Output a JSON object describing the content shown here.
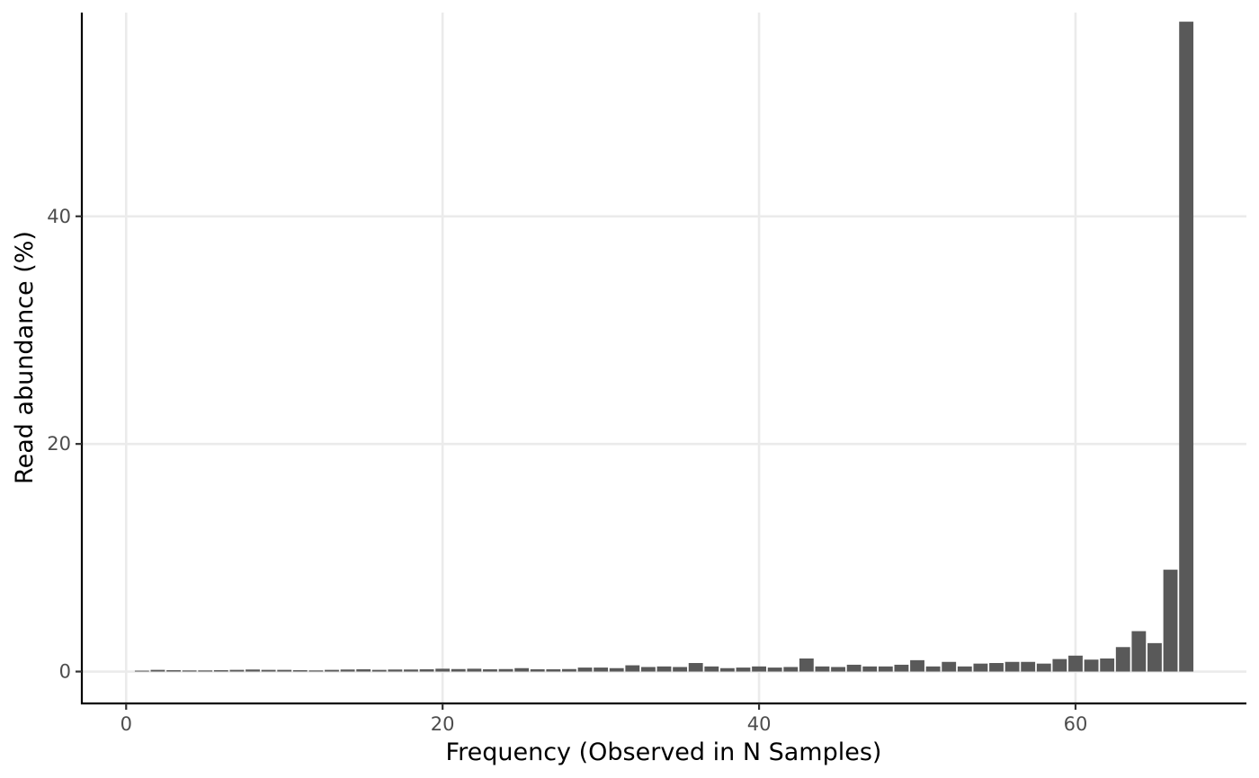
{
  "chart_data": {
    "type": "bar",
    "xlabel": "Frequency (Observed in N Samples)",
    "ylabel": "Read abundance (%)",
    "xlim": [
      -2.8,
      70.8
    ],
    "ylim": [
      -2.8,
      57.9
    ],
    "x_ticks": [
      0,
      20,
      40,
      60
    ],
    "y_ticks": [
      0,
      20,
      40
    ],
    "grid": true,
    "bar_color": "#595959",
    "x": [
      1,
      2,
      3,
      4,
      5,
      6,
      7,
      8,
      9,
      10,
      11,
      12,
      13,
      14,
      15,
      16,
      17,
      18,
      19,
      20,
      21,
      22,
      23,
      24,
      25,
      26,
      27,
      28,
      29,
      30,
      31,
      32,
      33,
      34,
      35,
      36,
      37,
      38,
      39,
      40,
      41,
      42,
      43,
      44,
      45,
      46,
      47,
      48,
      49,
      50,
      51,
      52,
      53,
      54,
      55,
      56,
      57,
      58,
      59,
      60,
      61,
      62,
      63,
      64,
      65,
      66,
      67
    ],
    "values": [
      0.08,
      0.15,
      0.12,
      0.1,
      0.1,
      0.12,
      0.15,
      0.18,
      0.15,
      0.15,
      0.12,
      0.1,
      0.15,
      0.18,
      0.2,
      0.15,
      0.18,
      0.18,
      0.2,
      0.25,
      0.22,
      0.25,
      0.2,
      0.22,
      0.3,
      0.2,
      0.2,
      0.22,
      0.35,
      0.35,
      0.3,
      0.55,
      0.4,
      0.45,
      0.4,
      0.75,
      0.45,
      0.3,
      0.35,
      0.45,
      0.35,
      0.4,
      1.15,
      0.45,
      0.4,
      0.6,
      0.45,
      0.45,
      0.6,
      1.0,
      0.45,
      0.85,
      0.45,
      0.7,
      0.75,
      0.85,
      0.85,
      0.7,
      1.1,
      1.4,
      1.05,
      1.15,
      2.15,
      3.55,
      2.5,
      8.95,
      57.1
    ]
  }
}
